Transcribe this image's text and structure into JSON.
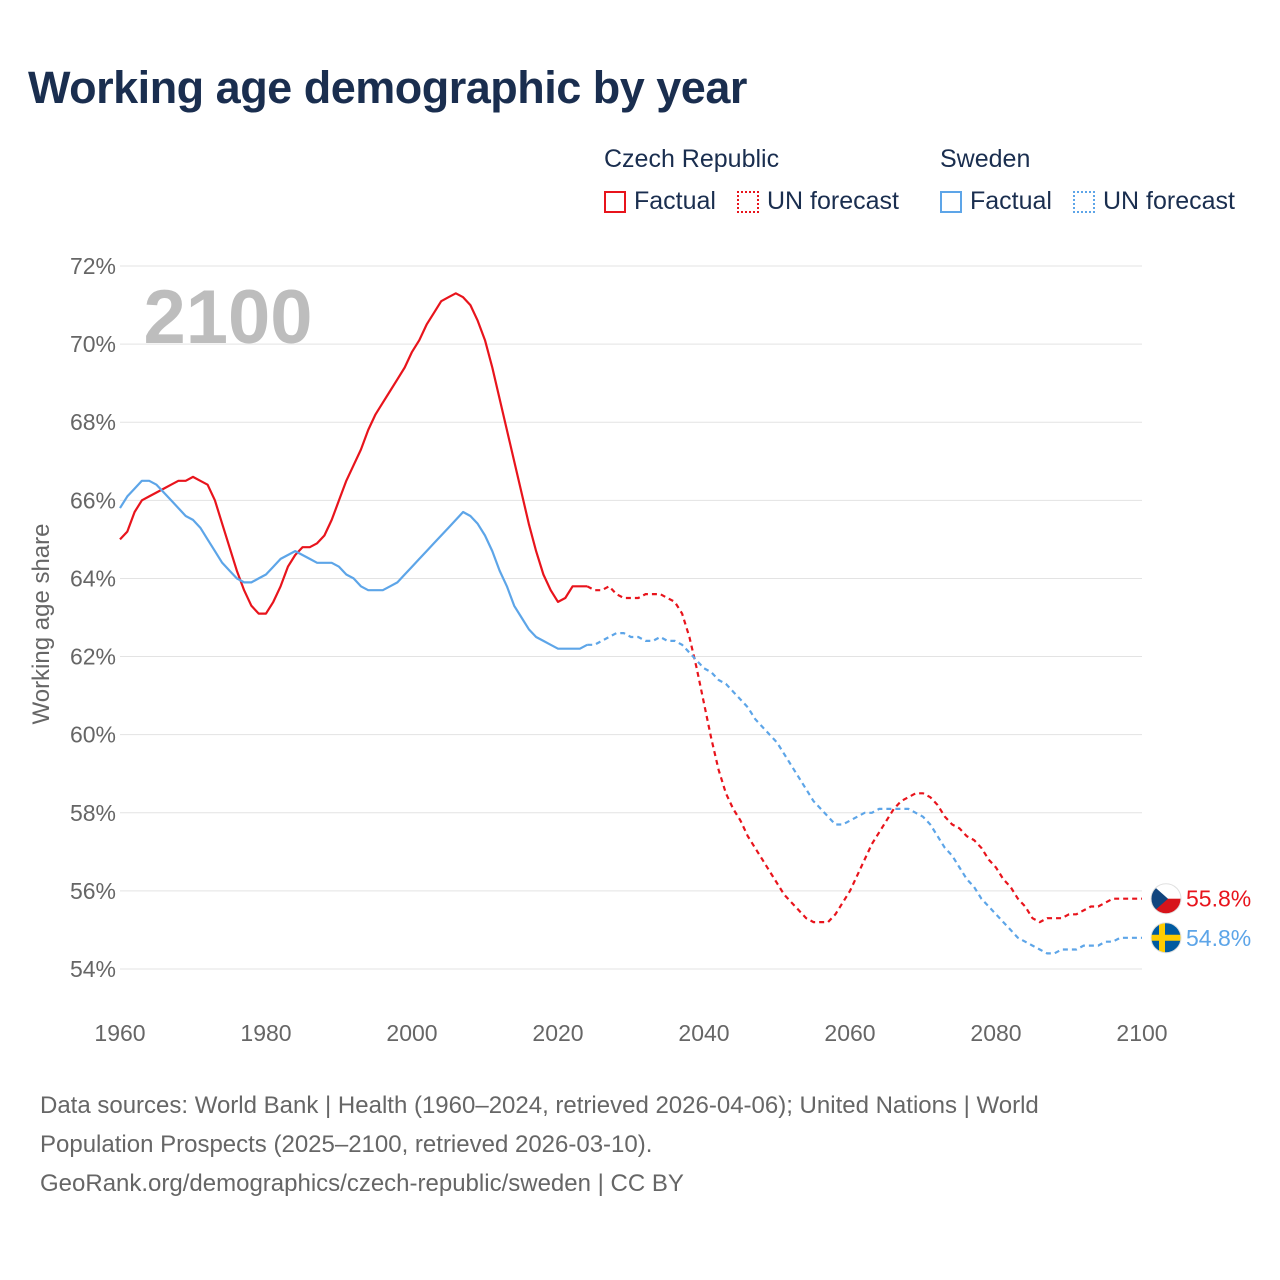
{
  "title": "Working age demographic by year",
  "legend": {
    "groups": [
      {
        "name": "Czech Republic",
        "color": "#e8141c",
        "items": [
          {
            "label": "Factual",
            "style": "solid"
          },
          {
            "label": "UN forecast",
            "style": "dotted"
          }
        ]
      },
      {
        "name": "Sweden",
        "color": "#5da5e8",
        "items": [
          {
            "label": "Factual",
            "style": "solid"
          },
          {
            "label": "UN forecast",
            "style": "dotted"
          }
        ]
      }
    ]
  },
  "year_watermark": "2100",
  "footer": {
    "line1": "Data sources: World Bank | Health (1960–2024, retrieved 2026-04-06); United Nations | World",
    "line2": "Population Prospects (2025–2100, retrieved 2026-03-10).",
    "line3": "GeoRank.org/demographics/czech-republic/sweden | CC BY"
  },
  "chart_data": {
    "type": "line",
    "title": "Working age demographic by year",
    "xlabel": "",
    "ylabel": "Working age share",
    "xlim": [
      1960,
      2100
    ],
    "ylim": [
      54,
      72
    ],
    "x_ticks": [
      1960,
      1980,
      2000,
      2020,
      2040,
      2060,
      2080,
      2100
    ],
    "y_ticks": [
      54,
      56,
      58,
      60,
      62,
      64,
      66,
      68,
      70,
      72
    ],
    "y_tick_labels": [
      "54%",
      "56%",
      "58%",
      "60%",
      "62%",
      "64%",
      "66%",
      "68%",
      "70%",
      "72%"
    ],
    "grid": true,
    "forecast_start": 2024,
    "series": [
      {
        "name": "Czech Republic",
        "color": "#e8141c",
        "end_label": "55.8%",
        "flag": "czech-flag",
        "points": [
          [
            1960,
            65.0
          ],
          [
            1961,
            65.2
          ],
          [
            1962,
            65.7
          ],
          [
            1963,
            66.0
          ],
          [
            1964,
            66.1
          ],
          [
            1965,
            66.2
          ],
          [
            1966,
            66.3
          ],
          [
            1967,
            66.4
          ],
          [
            1968,
            66.5
          ],
          [
            1969,
            66.5
          ],
          [
            1970,
            66.6
          ],
          [
            1971,
            66.5
          ],
          [
            1972,
            66.4
          ],
          [
            1973,
            66.0
          ],
          [
            1974,
            65.4
          ],
          [
            1975,
            64.8
          ],
          [
            1976,
            64.2
          ],
          [
            1977,
            63.7
          ],
          [
            1978,
            63.3
          ],
          [
            1979,
            63.1
          ],
          [
            1980,
            63.1
          ],
          [
            1981,
            63.4
          ],
          [
            1982,
            63.8
          ],
          [
            1983,
            64.3
          ],
          [
            1984,
            64.6
          ],
          [
            1985,
            64.8
          ],
          [
            1986,
            64.8
          ],
          [
            1987,
            64.9
          ],
          [
            1988,
            65.1
          ],
          [
            1989,
            65.5
          ],
          [
            1990,
            66.0
          ],
          [
            1991,
            66.5
          ],
          [
            1992,
            66.9
          ],
          [
            1993,
            67.3
          ],
          [
            1994,
            67.8
          ],
          [
            1995,
            68.2
          ],
          [
            1996,
            68.5
          ],
          [
            1997,
            68.8
          ],
          [
            1998,
            69.1
          ],
          [
            1999,
            69.4
          ],
          [
            2000,
            69.8
          ],
          [
            2001,
            70.1
          ],
          [
            2002,
            70.5
          ],
          [
            2003,
            70.8
          ],
          [
            2004,
            71.1
          ],
          [
            2005,
            71.2
          ],
          [
            2006,
            71.3
          ],
          [
            2007,
            71.2
          ],
          [
            2008,
            71.0
          ],
          [
            2009,
            70.6
          ],
          [
            2010,
            70.1
          ],
          [
            2011,
            69.4
          ],
          [
            2012,
            68.6
          ],
          [
            2013,
            67.8
          ],
          [
            2014,
            67.0
          ],
          [
            2015,
            66.2
          ],
          [
            2016,
            65.4
          ],
          [
            2017,
            64.7
          ],
          [
            2018,
            64.1
          ],
          [
            2019,
            63.7
          ],
          [
            2020,
            63.4
          ],
          [
            2021,
            63.5
          ],
          [
            2022,
            63.8
          ],
          [
            2023,
            63.8
          ],
          [
            2024,
            63.8
          ],
          [
            2025,
            63.7
          ],
          [
            2026,
            63.7
          ],
          [
            2027,
            63.8
          ],
          [
            2028,
            63.6
          ],
          [
            2029,
            63.5
          ],
          [
            2030,
            63.5
          ],
          [
            2031,
            63.5
          ],
          [
            2032,
            63.6
          ],
          [
            2033,
            63.6
          ],
          [
            2034,
            63.6
          ],
          [
            2035,
            63.5
          ],
          [
            2036,
            63.4
          ],
          [
            2037,
            63.1
          ],
          [
            2038,
            62.5
          ],
          [
            2039,
            61.7
          ],
          [
            2040,
            60.8
          ],
          [
            2041,
            59.9
          ],
          [
            2042,
            59.1
          ],
          [
            2043,
            58.5
          ],
          [
            2044,
            58.1
          ],
          [
            2045,
            57.8
          ],
          [
            2046,
            57.4
          ],
          [
            2047,
            57.1
          ],
          [
            2048,
            56.8
          ],
          [
            2049,
            56.5
          ],
          [
            2050,
            56.2
          ],
          [
            2051,
            55.9
          ],
          [
            2052,
            55.7
          ],
          [
            2053,
            55.5
          ],
          [
            2054,
            55.3
          ],
          [
            2055,
            55.2
          ],
          [
            2056,
            55.2
          ],
          [
            2057,
            55.2
          ],
          [
            2058,
            55.4
          ],
          [
            2059,
            55.7
          ],
          [
            2060,
            56.0
          ],
          [
            2061,
            56.4
          ],
          [
            2062,
            56.8
          ],
          [
            2063,
            57.2
          ],
          [
            2064,
            57.5
          ],
          [
            2065,
            57.8
          ],
          [
            2066,
            58.1
          ],
          [
            2067,
            58.3
          ],
          [
            2068,
            58.4
          ],
          [
            2069,
            58.5
          ],
          [
            2070,
            58.5
          ],
          [
            2071,
            58.4
          ],
          [
            2072,
            58.2
          ],
          [
            2073,
            57.9
          ],
          [
            2074,
            57.7
          ],
          [
            2075,
            57.6
          ],
          [
            2076,
            57.4
          ],
          [
            2077,
            57.3
          ],
          [
            2078,
            57.1
          ],
          [
            2079,
            56.8
          ],
          [
            2080,
            56.6
          ],
          [
            2081,
            56.3
          ],
          [
            2082,
            56.1
          ],
          [
            2083,
            55.8
          ],
          [
            2084,
            55.6
          ],
          [
            2085,
            55.3
          ],
          [
            2086,
            55.2
          ],
          [
            2087,
            55.3
          ],
          [
            2088,
            55.3
          ],
          [
            2089,
            55.3
          ],
          [
            2090,
            55.4
          ],
          [
            2091,
            55.4
          ],
          [
            2092,
            55.5
          ],
          [
            2093,
            55.6
          ],
          [
            2094,
            55.6
          ],
          [
            2095,
            55.7
          ],
          [
            2096,
            55.8
          ],
          [
            2097,
            55.8
          ],
          [
            2098,
            55.8
          ],
          [
            2099,
            55.8
          ],
          [
            2100,
            55.8
          ]
        ]
      },
      {
        "name": "Sweden",
        "color": "#5da5e8",
        "end_label": "54.8%",
        "flag": "sweden-flag",
        "points": [
          [
            1960,
            65.8
          ],
          [
            1961,
            66.1
          ],
          [
            1962,
            66.3
          ],
          [
            1963,
            66.5
          ],
          [
            1964,
            66.5
          ],
          [
            1965,
            66.4
          ],
          [
            1966,
            66.2
          ],
          [
            1967,
            66.0
          ],
          [
            1968,
            65.8
          ],
          [
            1969,
            65.6
          ],
          [
            1970,
            65.5
          ],
          [
            1971,
            65.3
          ],
          [
            1972,
            65.0
          ],
          [
            1973,
            64.7
          ],
          [
            1974,
            64.4
          ],
          [
            1975,
            64.2
          ],
          [
            1976,
            64.0
          ],
          [
            1977,
            63.9
          ],
          [
            1978,
            63.9
          ],
          [
            1979,
            64.0
          ],
          [
            1980,
            64.1
          ],
          [
            1981,
            64.3
          ],
          [
            1982,
            64.5
          ],
          [
            1983,
            64.6
          ],
          [
            1984,
            64.7
          ],
          [
            1985,
            64.6
          ],
          [
            1986,
            64.5
          ],
          [
            1987,
            64.4
          ],
          [
            1988,
            64.4
          ],
          [
            1989,
            64.4
          ],
          [
            1990,
            64.3
          ],
          [
            1991,
            64.1
          ],
          [
            1992,
            64.0
          ],
          [
            1993,
            63.8
          ],
          [
            1994,
            63.7
          ],
          [
            1995,
            63.7
          ],
          [
            1996,
            63.7
          ],
          [
            1997,
            63.8
          ],
          [
            1998,
            63.9
          ],
          [
            1999,
            64.1
          ],
          [
            2000,
            64.3
          ],
          [
            2001,
            64.5
          ],
          [
            2002,
            64.7
          ],
          [
            2003,
            64.9
          ],
          [
            2004,
            65.1
          ],
          [
            2005,
            65.3
          ],
          [
            2006,
            65.5
          ],
          [
            2007,
            65.7
          ],
          [
            2008,
            65.6
          ],
          [
            2009,
            65.4
          ],
          [
            2010,
            65.1
          ],
          [
            2011,
            64.7
          ],
          [
            2012,
            64.2
          ],
          [
            2013,
            63.8
          ],
          [
            2014,
            63.3
          ],
          [
            2015,
            63.0
          ],
          [
            2016,
            62.7
          ],
          [
            2017,
            62.5
          ],
          [
            2018,
            62.4
          ],
          [
            2019,
            62.3
          ],
          [
            2020,
            62.2
          ],
          [
            2021,
            62.2
          ],
          [
            2022,
            62.2
          ],
          [
            2023,
            62.2
          ],
          [
            2024,
            62.3
          ],
          [
            2025,
            62.3
          ],
          [
            2026,
            62.4
          ],
          [
            2027,
            62.5
          ],
          [
            2028,
            62.6
          ],
          [
            2029,
            62.6
          ],
          [
            2030,
            62.5
          ],
          [
            2031,
            62.5
          ],
          [
            2032,
            62.4
          ],
          [
            2033,
            62.4
          ],
          [
            2034,
            62.5
          ],
          [
            2035,
            62.4
          ],
          [
            2036,
            62.4
          ],
          [
            2037,
            62.3
          ],
          [
            2038,
            62.1
          ],
          [
            2039,
            61.9
          ],
          [
            2040,
            61.7
          ],
          [
            2041,
            61.6
          ],
          [
            2042,
            61.4
          ],
          [
            2043,
            61.3
          ],
          [
            2044,
            61.1
          ],
          [
            2045,
            60.9
          ],
          [
            2046,
            60.7
          ],
          [
            2047,
            60.4
          ],
          [
            2048,
            60.2
          ],
          [
            2049,
            60.0
          ],
          [
            2050,
            59.8
          ],
          [
            2051,
            59.5
          ],
          [
            2052,
            59.2
          ],
          [
            2053,
            58.9
          ],
          [
            2054,
            58.6
          ],
          [
            2055,
            58.3
          ],
          [
            2056,
            58.1
          ],
          [
            2057,
            57.9
          ],
          [
            2058,
            57.7
          ],
          [
            2059,
            57.7
          ],
          [
            2060,
            57.8
          ],
          [
            2061,
            57.9
          ],
          [
            2062,
            58.0
          ],
          [
            2063,
            58.0
          ],
          [
            2064,
            58.1
          ],
          [
            2065,
            58.1
          ],
          [
            2066,
            58.1
          ],
          [
            2067,
            58.1
          ],
          [
            2068,
            58.1
          ],
          [
            2069,
            58.0
          ],
          [
            2070,
            57.9
          ],
          [
            2071,
            57.7
          ],
          [
            2072,
            57.4
          ],
          [
            2073,
            57.1
          ],
          [
            2074,
            56.9
          ],
          [
            2075,
            56.6
          ],
          [
            2076,
            56.3
          ],
          [
            2077,
            56.1
          ],
          [
            2078,
            55.8
          ],
          [
            2079,
            55.6
          ],
          [
            2080,
            55.4
          ],
          [
            2081,
            55.2
          ],
          [
            2082,
            55.0
          ],
          [
            2083,
            54.8
          ],
          [
            2084,
            54.7
          ],
          [
            2085,
            54.6
          ],
          [
            2086,
            54.5
          ],
          [
            2087,
            54.4
          ],
          [
            2088,
            54.4
          ],
          [
            2089,
            54.5
          ],
          [
            2090,
            54.5
          ],
          [
            2091,
            54.5
          ],
          [
            2092,
            54.6
          ],
          [
            2093,
            54.6
          ],
          [
            2094,
            54.6
          ],
          [
            2095,
            54.7
          ],
          [
            2096,
            54.7
          ],
          [
            2097,
            54.8
          ],
          [
            2098,
            54.8
          ],
          [
            2099,
            54.8
          ],
          [
            2100,
            54.8
          ]
        ]
      }
    ]
  }
}
